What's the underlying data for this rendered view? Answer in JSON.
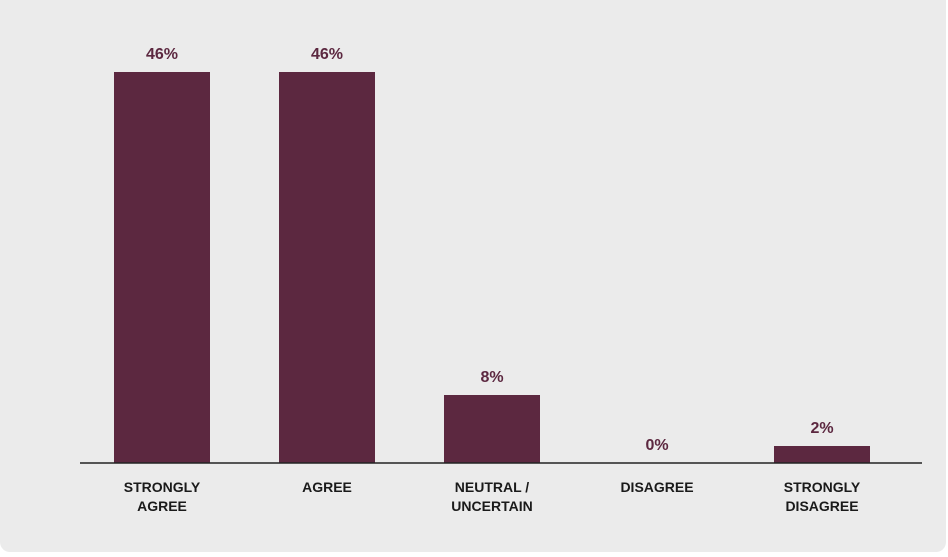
{
  "chart_data": {
    "type": "bar",
    "title": "",
    "xlabel": "",
    "ylabel": "",
    "categories": [
      [
        "STRONGLY",
        "AGREE"
      ],
      [
        "AGREE"
      ],
      [
        "NEUTRAL /",
        "UNCERTAIN"
      ],
      [
        "DISAGREE"
      ],
      [
        "STRONGLY",
        "DISAGREE"
      ]
    ],
    "values": [
      46,
      46,
      8,
      0,
      2
    ],
    "value_labels": [
      "46%",
      "46%",
      "8%",
      "0%",
      "2%"
    ],
    "unit": "%",
    "ylim": [
      0,
      46
    ],
    "grid": false,
    "legend": "none",
    "colors": {
      "bar": "#5c2840",
      "value_label": "#5c2840",
      "tick_label": "#1a1a1a",
      "background": "#ebebeb"
    }
  }
}
